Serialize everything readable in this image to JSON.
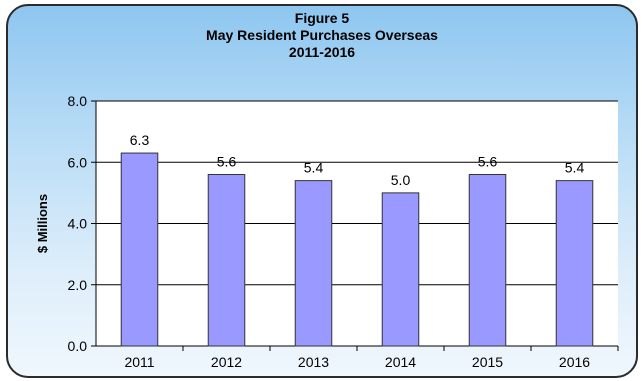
{
  "chart_data": {
    "type": "bar",
    "title": [
      "Figure 5",
      "May Resident Purchases Overseas",
      "2011-2016"
    ],
    "xlabel": "",
    "ylabel": "$ Millions",
    "categories": [
      "2011",
      "2012",
      "2013",
      "2014",
      "2015",
      "2016"
    ],
    "values": [
      6.3,
      5.6,
      5.4,
      5.0,
      5.6,
      5.4
    ],
    "data_labels": [
      "6.3",
      "5.6",
      "5.4",
      "5.0",
      "5.6",
      "5.4"
    ],
    "ylim": [
      0,
      8
    ],
    "yticks": [
      "0.0",
      "2.0",
      "4.0",
      "6.0",
      "8.0"
    ],
    "grid": true,
    "legend": "none",
    "bar_color": "#9999ff",
    "bar_outline": "#333333",
    "background_gradient": [
      "#8ec6f0",
      "#f0f7fd"
    ]
  }
}
